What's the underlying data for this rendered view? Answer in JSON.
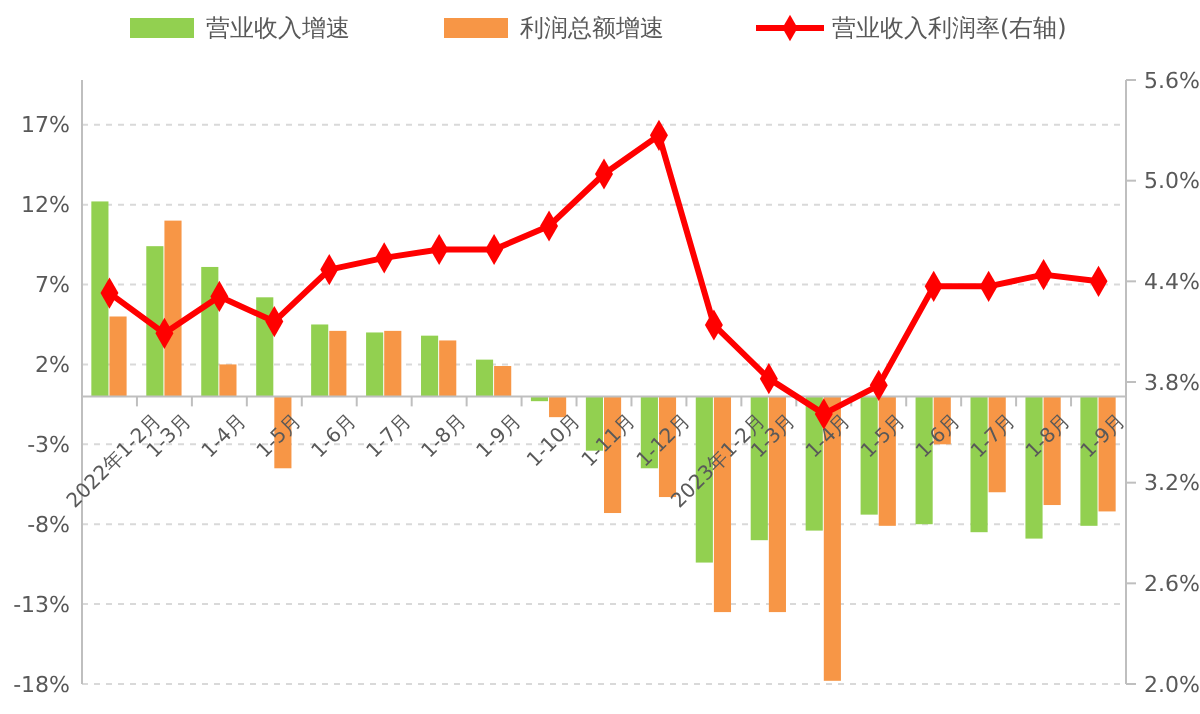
{
  "chart_data": {
    "type": "bar",
    "categories": [
      "2022年1-2月",
      "1-3月",
      "1-4月",
      "1-5月",
      "1-6月",
      "1-7月",
      "1-8月",
      "1-9月",
      "1-10月",
      "1-11月",
      "1-12月",
      "2023年1-2月",
      "1-3月",
      "1-4月",
      "1-5月",
      "1-6月",
      "1-7月",
      "1-8月",
      "1-9月"
    ],
    "series": [
      {
        "name": "营业收入增速",
        "color": "#92d050",
        "values": [
          12.2,
          9.4,
          8.1,
          6.2,
          4.5,
          4.0,
          3.8,
          2.3,
          -0.3,
          -3.4,
          -4.5,
          -10.4,
          -9.0,
          -8.4,
          -7.4,
          -8.0,
          -8.5,
          -8.9,
          -8.1
        ]
      },
      {
        "name": "利润总额增速",
        "color": "#f79646",
        "values": [
          5.0,
          11.0,
          2.0,
          -4.5,
          4.1,
          4.1,
          3.5,
          1.9,
          -1.3,
          -7.3,
          -6.3,
          -13.5,
          -13.5,
          -17.8,
          -8.1,
          -3.0,
          -6.0,
          -6.8,
          -7.2
        ]
      },
      {
        "name": "营业收入利润率(右轴)",
        "type": "line",
        "axis": "y2",
        "color": "#ff0000",
        "marker": "diamond",
        "values": [
          4.33,
          4.09,
          4.31,
          4.16,
          4.47,
          4.54,
          4.59,
          4.59,
          4.73,
          5.04,
          5.27,
          4.14,
          3.82,
          3.61,
          3.78,
          4.37,
          4.37,
          4.44,
          4.4
        ]
      }
    ],
    "ylim": [
      -18,
      19.8
    ],
    "yticks": [
      {
        "value": -18,
        "label": "-18%"
      },
      {
        "value": -13,
        "label": "-13%"
      },
      {
        "value": -8,
        "label": "-8%"
      },
      {
        "value": -3,
        "label": "-3%"
      },
      {
        "value": 2,
        "label": "2%"
      },
      {
        "value": 7,
        "label": "7%"
      },
      {
        "value": 12,
        "label": "12%"
      },
      {
        "value": 17,
        "label": "17%"
      }
    ],
    "y2lim": [
      2.0,
      5.6
    ],
    "y2ticks": [
      {
        "value": 2.0,
        "label": "2.0%"
      },
      {
        "value": 2.6,
        "label": "2.6%"
      },
      {
        "value": 3.2,
        "label": "3.2%"
      },
      {
        "value": 3.8,
        "label": "3.8%"
      },
      {
        "value": 4.4,
        "label": "4.4%"
      },
      {
        "value": 5.0,
        "label": "5.0%"
      },
      {
        "value": 5.6,
        "label": "5.6%"
      }
    ],
    "grid": "y",
    "legend": "top"
  }
}
